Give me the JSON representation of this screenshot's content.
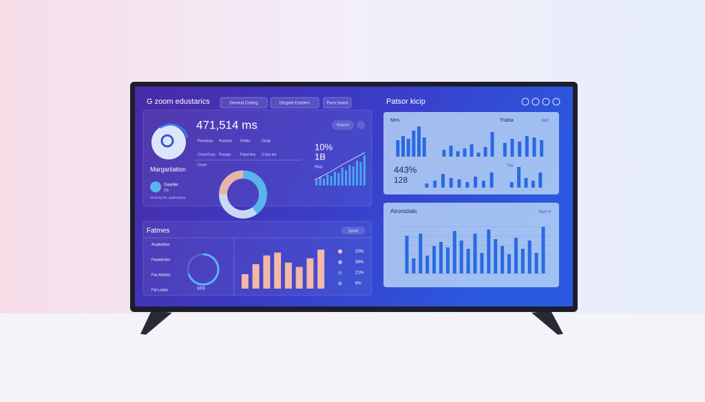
{
  "header": {
    "title": "G zoom edustarics",
    "tabs": [
      "Ginneal Cobing",
      "Dhyped Eshders",
      "Parsr board"
    ]
  },
  "overview": {
    "kpi": "471,514 ms",
    "button": "Reaeoh",
    "rows": [
      [
        "Pasnepas",
        "Pusasso",
        "Hnidla",
        "Dasig"
      ],
      [
        "Cirsal Ensa",
        "Pasnpa",
        "Paled Ans",
        "G bxy tea"
      ]
    ],
    "extra": "Cosel",
    "label": "Margariiation",
    "user": {
      "name": "Gaarlier",
      "sub": "DS",
      "note": "Shsrping bd. agtakneping"
    },
    "stat1": "10%",
    "stat2": "1B",
    "stat_caption": "Plisis",
    "spark_values": [
      8,
      12,
      10,
      16,
      14,
      20,
      18,
      26,
      22,
      30,
      28,
      36,
      34,
      44
    ],
    "donut": {
      "values": [
        40,
        35,
        25
      ],
      "colors": [
        "#5ab4ea",
        "#c9d8f4",
        "#e8b4a8"
      ]
    }
  },
  "frames": {
    "title": "Fatmes",
    "pill": "Spaial",
    "items": [
      "Anpliadlise",
      "Fasadnubs",
      "Fas Aaduts",
      "Fal Leaks"
    ],
    "gauge_caption": "3/03",
    "gauge_value": 70,
    "bar_values": [
      20,
      34,
      46,
      50,
      36,
      30,
      42,
      54
    ],
    "bar_color": "#f2b8a8",
    "legend": [
      "20%",
      "39%",
      "21%",
      "9%"
    ],
    "legend_colors": [
      "#f2c8c0",
      "#9ab8f0",
      "#4a90e0",
      "#6aa0e8"
    ]
  },
  "right": {
    "title": "Patsor kicip",
    "top": {
      "title": "Mmi",
      "title2": "Trabla",
      "corner": "Gg/e",
      "corner2": "Tda",
      "stat1": "443%",
      "stat2": "128",
      "group1": [
        24,
        30,
        26,
        38,
        44,
        28
      ],
      "group2": [
        10,
        16,
        8,
        12,
        18,
        6,
        14,
        36
      ],
      "group3": [
        20,
        26,
        22,
        30,
        28,
        24
      ],
      "group4": [
        6,
        10,
        20,
        14,
        12,
        8,
        16,
        10,
        22
      ],
      "group5": [
        8,
        30,
        14,
        10,
        22
      ]
    },
    "bottom": {
      "title": "Atroniziials",
      "corner": "Gsysl m",
      "values": [
        55,
        22,
        58,
        26,
        40,
        46,
        38,
        62,
        48,
        36,
        58,
        30,
        64,
        50,
        40,
        28,
        52,
        36,
        48,
        30,
        68
      ]
    }
  }
}
